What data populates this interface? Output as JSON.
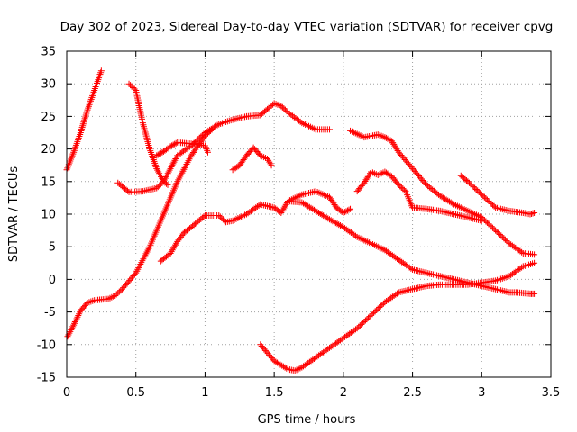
{
  "chart_data": {
    "type": "scatter",
    "title": "Day 302 of 2023, Sidereal Day-to-day VTEC variation (SDTVAR) for receiver cpvg",
    "xlabel": "GPS time / hours",
    "ylabel": "SDTVAR / TECUs",
    "xlim": [
      0,
      3.5
    ],
    "ylim": [
      -15,
      35
    ],
    "xticks": [
      0,
      0.5,
      1,
      1.5,
      2,
      2.5,
      3,
      3.5
    ],
    "xtick_labels": [
      "0",
      "0.5",
      "1",
      "1.5",
      "2",
      "2.5",
      "3",
      "3.5"
    ],
    "yticks": [
      -15,
      -10,
      -5,
      0,
      5,
      10,
      15,
      20,
      25,
      30,
      35
    ],
    "ytick_labels": [
      "-15",
      "-10",
      "-5",
      "0",
      "5",
      "10",
      "15",
      "20",
      "25",
      "30",
      "35"
    ],
    "grid": true,
    "marker": "+",
    "color": "#ff0000",
    "series": [
      {
        "name": "s1",
        "x": [
          0.0,
          0.05,
          0.1,
          0.15,
          0.2,
          0.25
        ],
        "y": [
          16.8,
          19.5,
          22.5,
          26.0,
          29.0,
          32.0
        ]
      },
      {
        "name": "s2",
        "x": [
          0.0,
          0.05,
          0.1,
          0.15,
          0.2,
          0.25,
          0.3,
          0.35,
          0.4,
          0.5,
          0.6,
          0.7,
          0.8,
          0.9,
          1.0,
          1.05
        ],
        "y": [
          -9.0,
          -7.0,
          -4.8,
          -3.6,
          -3.2,
          -3.1,
          -3.0,
          -2.5,
          -1.5,
          1.0,
          5.0,
          10.0,
          15.0,
          19.0,
          22.0,
          23.0
        ]
      },
      {
        "name": "s3",
        "x": [
          0.45,
          0.5,
          0.55,
          0.6,
          0.65,
          0.7,
          0.73
        ],
        "y": [
          30.0,
          29.0,
          24.0,
          20.0,
          17.0,
          15.0,
          14.5
        ]
      },
      {
        "name": "s4",
        "x": [
          0.37,
          0.45,
          0.55,
          0.65,
          0.7,
          0.75,
          0.8,
          0.9,
          1.0,
          1.1,
          1.2,
          1.3,
          1.4,
          1.5,
          1.55,
          1.6,
          1.7,
          1.8,
          1.9
        ],
        "y": [
          14.8,
          13.4,
          13.5,
          14.0,
          15.0,
          17.0,
          19.0,
          20.5,
          22.5,
          23.8,
          24.5,
          25.0,
          25.2,
          27.0,
          26.6,
          25.6,
          24.0,
          23.0,
          23.0
        ]
      },
      {
        "name": "s5",
        "x": [
          0.65,
          0.7,
          0.75,
          0.8,
          0.9,
          1.0,
          1.02
        ],
        "y": [
          19.0,
          19.6,
          20.4,
          21.0,
          20.8,
          20.5,
          19.5
        ]
      },
      {
        "name": "s6",
        "x": [
          0.68,
          0.75,
          0.8,
          0.85,
          0.9,
          1.0,
          1.1,
          1.15,
          1.2,
          1.3,
          1.4,
          1.5,
          1.55,
          1.6,
          1.7,
          1.8,
          1.9,
          1.95,
          2.0,
          2.05
        ],
        "y": [
          2.8,
          4.0,
          5.8,
          7.2,
          8.0,
          9.8,
          9.8,
          8.8,
          9.0,
          10.0,
          11.5,
          11.0,
          10.2,
          12.0,
          13.0,
          13.5,
          12.6,
          11.0,
          10.2,
          10.8
        ]
      },
      {
        "name": "s7",
        "x": [
          1.2,
          1.25,
          1.3,
          1.35,
          1.4,
          1.45,
          1.48
        ],
        "y": [
          16.8,
          17.5,
          19.0,
          20.2,
          19.0,
          18.5,
          17.5
        ]
      },
      {
        "name": "s8",
        "x": [
          1.6,
          1.7,
          1.8,
          1.9,
          2.0,
          2.1,
          2.2,
          2.3,
          2.4,
          2.5,
          2.6,
          2.7,
          2.8,
          2.9,
          3.0,
          3.1,
          3.2,
          3.25,
          3.3,
          3.35,
          3.38
        ],
        "y": [
          12.0,
          11.8,
          10.5,
          9.2,
          8.0,
          6.5,
          5.5,
          4.5,
          3.0,
          1.5,
          1.0,
          0.5,
          0.0,
          -0.5,
          -1.0,
          -1.5,
          -2.0,
          -2.0,
          -2.1,
          -2.2,
          -2.2
        ]
      },
      {
        "name": "s9",
        "x": [
          1.4,
          1.5,
          1.6,
          1.65,
          1.7,
          1.8,
          1.9,
          2.0,
          2.1,
          2.2,
          2.3,
          2.4,
          2.5,
          2.6,
          2.7,
          2.8,
          2.9,
          3.0,
          3.1,
          3.2,
          3.3,
          3.38
        ],
        "y": [
          -10.0,
          -12.5,
          -13.8,
          -14.0,
          -13.5,
          -12.0,
          -10.5,
          -9.0,
          -7.5,
          -5.5,
          -3.5,
          -2.0,
          -1.5,
          -1.0,
          -0.8,
          -0.8,
          -0.8,
          -0.5,
          -0.2,
          0.5,
          2.0,
          2.5
        ]
      },
      {
        "name": "s10",
        "x": [
          2.05,
          2.1,
          2.15,
          2.2,
          2.25,
          2.3,
          2.35,
          2.4,
          2.5,
          2.6,
          2.7,
          2.8,
          2.9,
          3.0,
          3.1,
          3.2,
          3.3,
          3.38
        ],
        "y": [
          22.8,
          22.3,
          21.8,
          22.0,
          22.2,
          21.8,
          21.2,
          19.5,
          17.0,
          14.5,
          12.8,
          11.5,
          10.5,
          9.5,
          7.5,
          5.5,
          4.0,
          3.8
        ]
      },
      {
        "name": "s11",
        "x": [
          2.1,
          2.15,
          2.2,
          2.25,
          2.3,
          2.35,
          2.4,
          2.45,
          2.5,
          2.6,
          2.7,
          2.8,
          2.9,
          3.0
        ],
        "y": [
          13.5,
          14.8,
          16.5,
          16.0,
          16.5,
          15.8,
          14.5,
          13.5,
          11.0,
          10.8,
          10.5,
          10.0,
          9.5,
          9.0
        ]
      },
      {
        "name": "s12",
        "x": [
          2.85,
          2.9,
          3.0,
          3.1,
          3.2,
          3.3,
          3.35,
          3.38
        ],
        "y": [
          15.9,
          15.0,
          13.0,
          11.0,
          10.5,
          10.2,
          10.0,
          10.2
        ]
      }
    ]
  }
}
